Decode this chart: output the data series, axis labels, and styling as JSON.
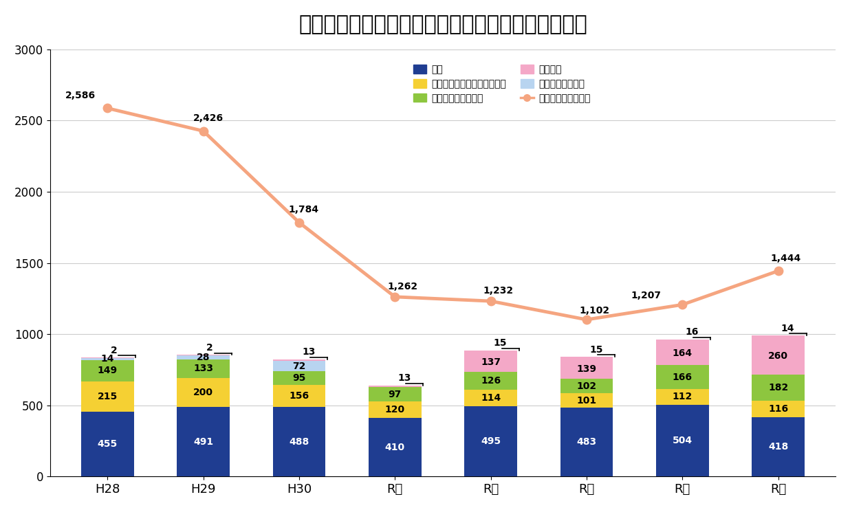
{
  "title": "ストーカー相談件数とストーカー規制法の検挙状況",
  "categories": [
    "H28",
    "H29",
    "H30",
    "R元",
    "R２",
    "R３",
    "R４",
    "R５"
  ],
  "val_keikoku": [
    455,
    491,
    488,
    410,
    495,
    483,
    504,
    418
  ],
  "val_kyouhaku": [
    215,
    200,
    156,
    120,
    114,
    101,
    112,
    116
  ],
  "val_koi": [
    149,
    133,
    95,
    97,
    126,
    102,
    166,
    182
  ],
  "val_lb": [
    14,
    28,
    72,
    0,
    0,
    0,
    0,
    0
  ],
  "val_pink_mid": [
    0,
    0,
    0,
    0,
    137,
    139,
    164,
    260
  ],
  "val_kinshi": [
    2,
    2,
    13,
    13,
    15,
    15,
    16,
    14
  ],
  "line_vals": [
    2586,
    2426,
    1784,
    1262,
    1232,
    1102,
    1207,
    1444
  ],
  "color_blue": "#1f3d91",
  "color_yellow": "#f5d033",
  "color_green": "#8dc63f",
  "color_pink": "#f4a8c7",
  "color_lb": "#b8d4f0",
  "color_line": "#f5a580",
  "color_bg": "#ffffff",
  "ylim": [
    0,
    3000
  ],
  "yticks": [
    0,
    500,
    1000,
    1500,
    2000,
    2500,
    3000
  ],
  "bar_width": 0.55,
  "title_fontsize": 22,
  "legend_labels": [
    "警告",
    "ストーカー起因の脅迫等検挙",
    "ストーカー行為検挙",
    "禁止命令",
    "禁止命令違反検挙",
    "ストーカー相談件数"
  ]
}
